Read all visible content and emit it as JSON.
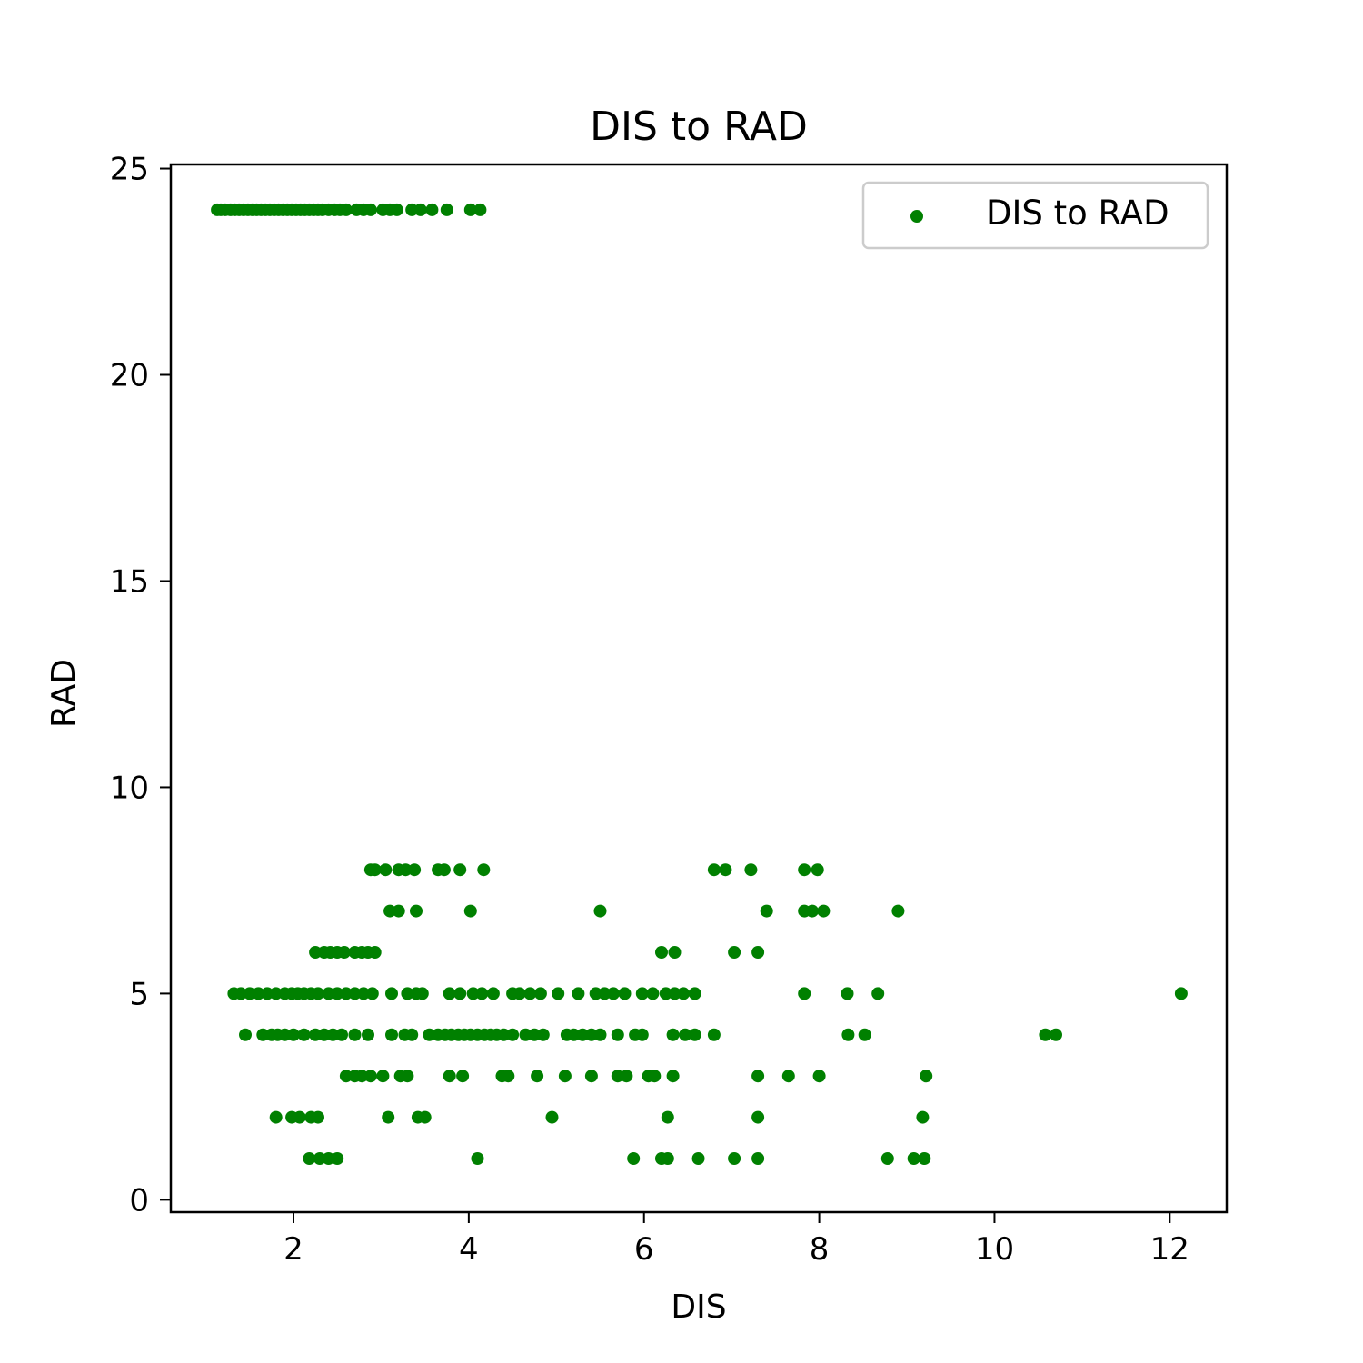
{
  "chart_data": {
    "type": "scatter",
    "title": "DIS to RAD",
    "xlabel": "DIS",
    "ylabel": "RAD",
    "xlim": [
      0.6,
      12.65
    ],
    "ylim": [
      -0.3,
      25.1
    ],
    "xticks": [
      2,
      4,
      6,
      8,
      10,
      12
    ],
    "yticks": [
      0,
      5,
      10,
      15,
      20,
      25
    ],
    "grid": false,
    "legend_position": "top-right",
    "color": "#008000",
    "series": [
      {
        "name": "DIS to RAD",
        "points": [
          [
            1.13,
            24
          ],
          [
            1.17,
            24
          ],
          [
            1.22,
            24
          ],
          [
            1.28,
            24
          ],
          [
            1.33,
            24
          ],
          [
            1.38,
            24
          ],
          [
            1.43,
            24
          ],
          [
            1.48,
            24
          ],
          [
            1.53,
            24
          ],
          [
            1.58,
            24
          ],
          [
            1.63,
            24
          ],
          [
            1.68,
            24
          ],
          [
            1.73,
            24
          ],
          [
            1.78,
            24
          ],
          [
            1.83,
            24
          ],
          [
            1.88,
            24
          ],
          [
            1.93,
            24
          ],
          [
            1.98,
            24
          ],
          [
            2.03,
            24
          ],
          [
            2.08,
            24
          ],
          [
            2.13,
            24
          ],
          [
            2.18,
            24
          ],
          [
            2.23,
            24
          ],
          [
            2.28,
            24
          ],
          [
            2.33,
            24
          ],
          [
            2.4,
            24
          ],
          [
            2.47,
            24
          ],
          [
            2.53,
            24
          ],
          [
            2.6,
            24
          ],
          [
            2.72,
            24
          ],
          [
            2.8,
            24
          ],
          [
            2.88,
            24
          ],
          [
            3.02,
            24
          ],
          [
            3.1,
            24
          ],
          [
            3.18,
            24
          ],
          [
            3.35,
            24
          ],
          [
            3.45,
            24
          ],
          [
            3.58,
            24
          ],
          [
            3.75,
            24
          ],
          [
            4.02,
            24
          ],
          [
            4.13,
            24
          ],
          [
            2.88,
            8
          ],
          [
            2.93,
            8
          ],
          [
            3.05,
            8
          ],
          [
            3.2,
            8
          ],
          [
            3.28,
            8
          ],
          [
            3.38,
            8
          ],
          [
            3.65,
            8
          ],
          [
            3.72,
            8
          ],
          [
            3.9,
            8
          ],
          [
            4.17,
            8
          ],
          [
            6.8,
            8
          ],
          [
            6.93,
            8
          ],
          [
            7.22,
            8
          ],
          [
            7.83,
            8
          ],
          [
            7.98,
            8
          ],
          [
            3.1,
            7
          ],
          [
            3.2,
            7
          ],
          [
            3.4,
            7
          ],
          [
            4.02,
            7
          ],
          [
            5.5,
            7
          ],
          [
            7.4,
            7
          ],
          [
            7.83,
            7
          ],
          [
            7.92,
            7
          ],
          [
            8.05,
            7
          ],
          [
            8.9,
            7
          ],
          [
            2.25,
            6
          ],
          [
            2.35,
            6
          ],
          [
            2.42,
            6
          ],
          [
            2.5,
            6
          ],
          [
            2.58,
            6
          ],
          [
            2.7,
            6
          ],
          [
            2.78,
            6
          ],
          [
            2.85,
            6
          ],
          [
            2.93,
            6
          ],
          [
            6.2,
            6
          ],
          [
            6.35,
            6
          ],
          [
            7.03,
            6
          ],
          [
            7.3,
            6
          ],
          [
            1.32,
            5
          ],
          [
            1.4,
            5
          ],
          [
            1.5,
            5
          ],
          [
            1.6,
            5
          ],
          [
            1.7,
            5
          ],
          [
            1.8,
            5
          ],
          [
            1.9,
            5
          ],
          [
            1.98,
            5
          ],
          [
            2.05,
            5
          ],
          [
            2.12,
            5
          ],
          [
            2.2,
            5
          ],
          [
            2.28,
            5
          ],
          [
            2.4,
            5
          ],
          [
            2.5,
            5
          ],
          [
            2.6,
            5
          ],
          [
            2.7,
            5
          ],
          [
            2.8,
            5
          ],
          [
            2.9,
            5
          ],
          [
            3.12,
            5
          ],
          [
            3.3,
            5
          ],
          [
            3.4,
            5
          ],
          [
            3.47,
            5
          ],
          [
            3.78,
            5
          ],
          [
            3.9,
            5
          ],
          [
            4.05,
            5
          ],
          [
            4.15,
            5
          ],
          [
            4.28,
            5
          ],
          [
            4.5,
            5
          ],
          [
            4.58,
            5
          ],
          [
            4.7,
            5
          ],
          [
            4.82,
            5
          ],
          [
            5.02,
            5
          ],
          [
            5.25,
            5
          ],
          [
            5.45,
            5
          ],
          [
            5.55,
            5
          ],
          [
            5.65,
            5
          ],
          [
            5.78,
            5
          ],
          [
            5.98,
            5
          ],
          [
            6.1,
            5
          ],
          [
            6.25,
            5
          ],
          [
            6.35,
            5
          ],
          [
            6.45,
            5
          ],
          [
            6.58,
            5
          ],
          [
            7.83,
            5
          ],
          [
            8.32,
            5
          ],
          [
            8.67,
            5
          ],
          [
            12.13,
            5
          ],
          [
            1.45,
            4
          ],
          [
            1.65,
            4
          ],
          [
            1.75,
            4
          ],
          [
            1.82,
            4
          ],
          [
            1.9,
            4
          ],
          [
            2.0,
            4
          ],
          [
            2.12,
            4
          ],
          [
            2.25,
            4
          ],
          [
            2.35,
            4
          ],
          [
            2.45,
            4
          ],
          [
            2.55,
            4
          ],
          [
            2.7,
            4
          ],
          [
            2.85,
            4
          ],
          [
            3.12,
            4
          ],
          [
            3.27,
            4
          ],
          [
            3.35,
            4
          ],
          [
            3.55,
            4
          ],
          [
            3.65,
            4
          ],
          [
            3.73,
            4
          ],
          [
            3.8,
            4
          ],
          [
            3.88,
            4
          ],
          [
            3.95,
            4
          ],
          [
            4.02,
            4
          ],
          [
            4.1,
            4
          ],
          [
            4.18,
            4
          ],
          [
            4.25,
            4
          ],
          [
            4.32,
            4
          ],
          [
            4.4,
            4
          ],
          [
            4.5,
            4
          ],
          [
            4.65,
            4
          ],
          [
            4.75,
            4
          ],
          [
            4.85,
            4
          ],
          [
            5.12,
            4
          ],
          [
            5.2,
            4
          ],
          [
            5.3,
            4
          ],
          [
            5.4,
            4
          ],
          [
            5.5,
            4
          ],
          [
            5.7,
            4
          ],
          [
            5.9,
            4
          ],
          [
            5.98,
            4
          ],
          [
            6.33,
            4
          ],
          [
            6.47,
            4
          ],
          [
            6.58,
            4
          ],
          [
            6.8,
            4
          ],
          [
            8.33,
            4
          ],
          [
            8.52,
            4
          ],
          [
            10.58,
            4
          ],
          [
            10.7,
            4
          ],
          [
            2.6,
            3
          ],
          [
            2.7,
            3
          ],
          [
            2.78,
            3
          ],
          [
            2.88,
            3
          ],
          [
            3.02,
            3
          ],
          [
            3.22,
            3
          ],
          [
            3.3,
            3
          ],
          [
            3.78,
            3
          ],
          [
            3.93,
            3
          ],
          [
            4.38,
            3
          ],
          [
            4.45,
            3
          ],
          [
            4.78,
            3
          ],
          [
            5.1,
            3
          ],
          [
            5.4,
            3
          ],
          [
            5.7,
            3
          ],
          [
            5.8,
            3
          ],
          [
            6.05,
            3
          ],
          [
            6.12,
            3
          ],
          [
            6.33,
            3
          ],
          [
            7.3,
            3
          ],
          [
            7.65,
            3
          ],
          [
            8.0,
            3
          ],
          [
            9.22,
            3
          ],
          [
            1.8,
            2
          ],
          [
            1.98,
            2
          ],
          [
            2.07,
            2
          ],
          [
            2.2,
            2
          ],
          [
            2.28,
            2
          ],
          [
            3.08,
            2
          ],
          [
            3.42,
            2
          ],
          [
            3.5,
            2
          ],
          [
            4.95,
            2
          ],
          [
            6.27,
            2
          ],
          [
            7.3,
            2
          ],
          [
            9.18,
            2
          ],
          [
            2.18,
            1
          ],
          [
            2.3,
            1
          ],
          [
            2.4,
            1
          ],
          [
            2.5,
            1
          ],
          [
            4.1,
            1
          ],
          [
            5.88,
            1
          ],
          [
            6.2,
            1
          ],
          [
            6.27,
            1
          ],
          [
            6.62,
            1
          ],
          [
            7.03,
            1
          ],
          [
            7.3,
            1
          ],
          [
            8.78,
            1
          ],
          [
            9.08,
            1
          ],
          [
            9.2,
            1
          ]
        ]
      }
    ]
  }
}
